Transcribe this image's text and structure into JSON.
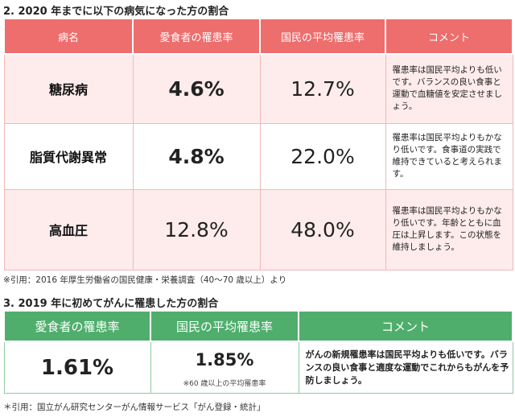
{
  "section2": {
    "heading": "2. 2020 年までに以下の病気になった方の割合",
    "headers": {
      "disease": "病名",
      "member_rate": "愛食者の罹患率",
      "national_rate": "国民の平均罹患率",
      "comment": "コメント"
    },
    "rows": [
      {
        "disease": "糖尿病",
        "member_rate": "4.6%",
        "national_rate": "12.7%",
        "comment": "罹患率は国民平均よりも低いです。バランスの良い食事と運動で血糖値を安定させましょう。"
      },
      {
        "disease": "脂質代謝異常",
        "member_rate": "4.8%",
        "national_rate": "22.0%",
        "comment": "罹患率は国民平均よりもかなり低いです。食事道の実践で維持できていると考えられます。"
      },
      {
        "disease": "高血圧",
        "member_rate": "12.8%",
        "national_rate": "48.0%",
        "comment": "罹患率は国民平均よりもかなり低いです。年齢とともに血圧は上昇します。この状態を維持しましょう。"
      }
    ],
    "source": "※引用：2016 年厚生労働省の国民健康・栄養調査（40～70 歳以上）より"
  },
  "section3": {
    "heading": "3. 2019 年に初めてがんに罹患した方の割合",
    "headers": {
      "member_rate": "愛食者の罹患率",
      "national_rate": "国民の平均罹患率",
      "comment": "コメント"
    },
    "member_rate": "1.61%",
    "national_rate": "1.85%",
    "national_note": "※60 歳以上の平均罹患率",
    "comment": "がんの新規罹患率は国民平均よりも低いです。バランスの良い食事と適度な運動でこれからもがんを予防しましょう。",
    "source": "＊引用：国立がん研究センターがん情報サービス「がん登録・統計」"
  },
  "colors": {
    "section2_header": "#ee6d6d",
    "section2_row_tint": "#fdeceb",
    "section3_header": "#4fae6c"
  }
}
